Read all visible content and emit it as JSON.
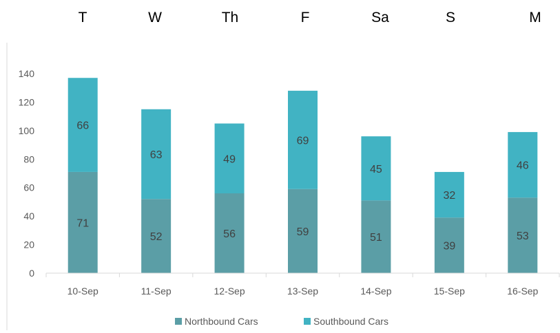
{
  "weekdays": [
    "T",
    "W",
    "Th",
    "F",
    "Sa",
    "S",
    "M"
  ],
  "chart_data": {
    "type": "bar",
    "stacked": true,
    "categories": [
      "10-Sep",
      "11-Sep",
      "12-Sep",
      "13-Sep",
      "14-Sep",
      "15-Sep",
      "16-Sep"
    ],
    "series": [
      {
        "name": "Northbound Cars",
        "values": [
          71,
          52,
          56,
          59,
          51,
          39,
          53
        ],
        "color": "#5b9ea6"
      },
      {
        "name": "Southbound Cars",
        "values": [
          66,
          63,
          49,
          69,
          45,
          32,
          46
        ],
        "color": "#41b3c3"
      }
    ],
    "ylim": [
      0,
      140
    ],
    "yticks": [
      0,
      20,
      40,
      60,
      80,
      100,
      120,
      140
    ],
    "grid": false,
    "legend": "bottom"
  }
}
